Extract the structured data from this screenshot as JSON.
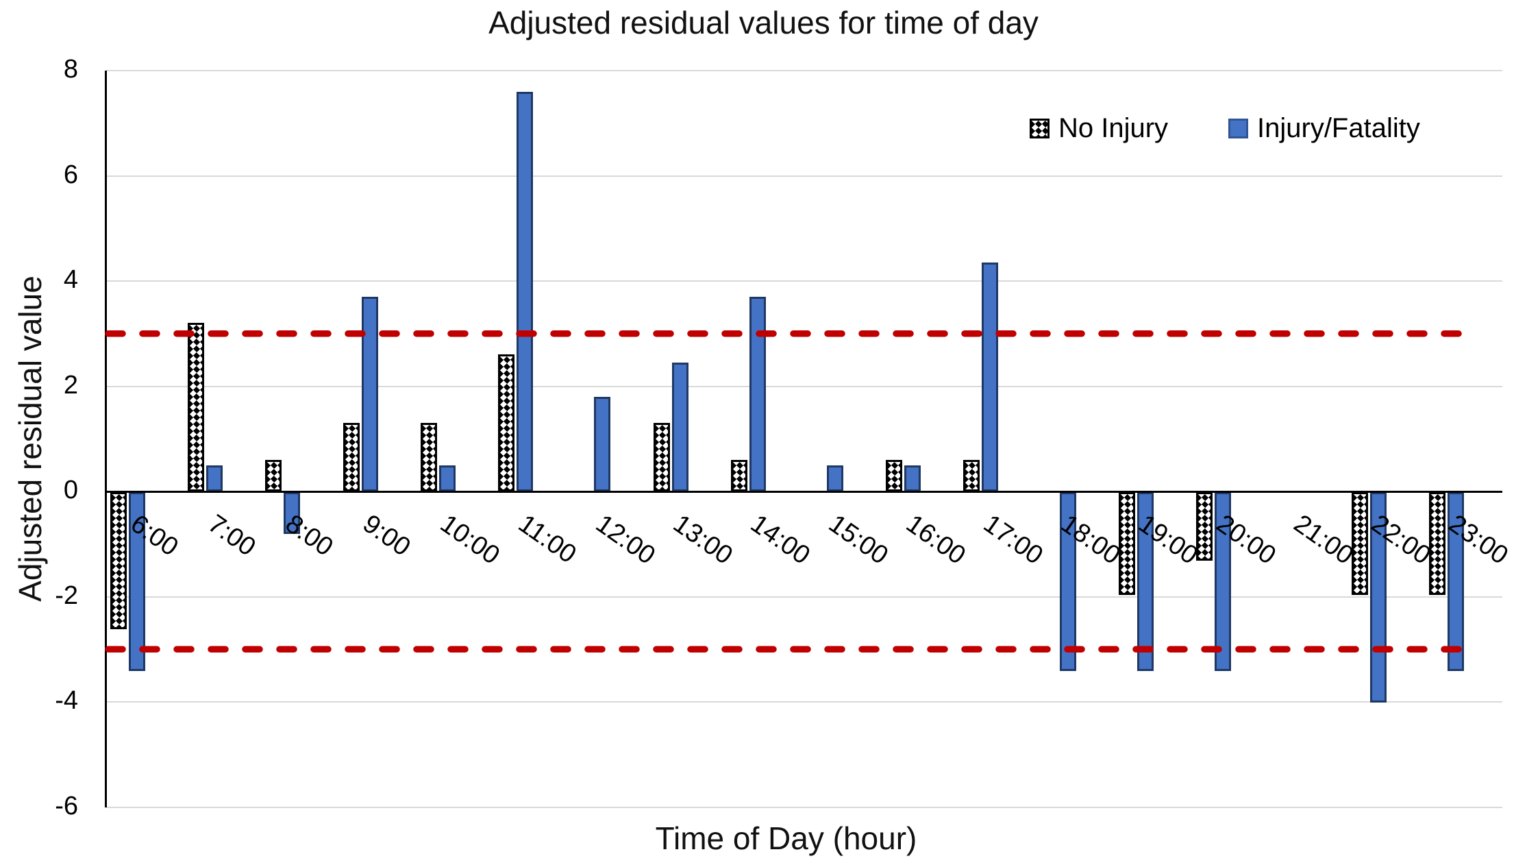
{
  "chart": {
    "title": "Adjusted residual values for time of day",
    "x_axis_title": "Time of Day (hour)",
    "y_axis_title": "Adjusted residual value",
    "legend": {
      "no_injury_label": "No Injury",
      "injury_fatality_label": "Injury/Fatality"
    }
  },
  "chart_data": {
    "type": "bar",
    "title": "Adjusted residual values for time of day",
    "xlabel": "Time of Day (hour)",
    "ylabel": "Adjusted residual value",
    "ylim": [
      -6,
      8
    ],
    "yticks": [
      8,
      6,
      4,
      2,
      0,
      -2,
      -4,
      -6
    ],
    "grid": true,
    "legend_position": "top-right",
    "categories": [
      "6:00",
      "7:00",
      "8:00",
      "9:00",
      "10:00",
      "11:00",
      "12:00",
      "13:00",
      "14:00",
      "15:00",
      "16:00",
      "17:00",
      "18:00",
      "19:00",
      "20:00",
      "21:00",
      "22:00",
      "23:00"
    ],
    "series": [
      {
        "name": "No Injury",
        "fill": "pattern-checker",
        "values": [
          -2.6,
          3.2,
          0.6,
          1.3,
          1.3,
          2.6,
          0,
          1.3,
          0.6,
          0,
          0.6,
          0.6,
          0,
          -1.95,
          -1.3,
          0,
          -1.95,
          -1.95
        ]
      },
      {
        "name": "Injury/Fatality",
        "fill": "solid",
        "color": "#4472C4",
        "values": [
          -3.4,
          0.5,
          -0.8,
          3.7,
          0.5,
          7.6,
          1.8,
          2.45,
          3.7,
          0.5,
          0.5,
          4.35,
          -3.4,
          -3.4,
          -3.4,
          0,
          -4.0,
          -3.4
        ]
      }
    ],
    "reference_lines": [
      {
        "value": 3,
        "style": "dashed",
        "color": "#C00000"
      },
      {
        "value": -3,
        "style": "dashed",
        "color": "#C00000"
      }
    ]
  },
  "colors": {
    "bar_blue": "#4472C4",
    "bar_blue_border": "#1F3864",
    "pattern_black": "#000000",
    "reference_red": "#C00000",
    "gridline": "#D9D9D9",
    "axis": "#000000",
    "text": "#000000"
  }
}
